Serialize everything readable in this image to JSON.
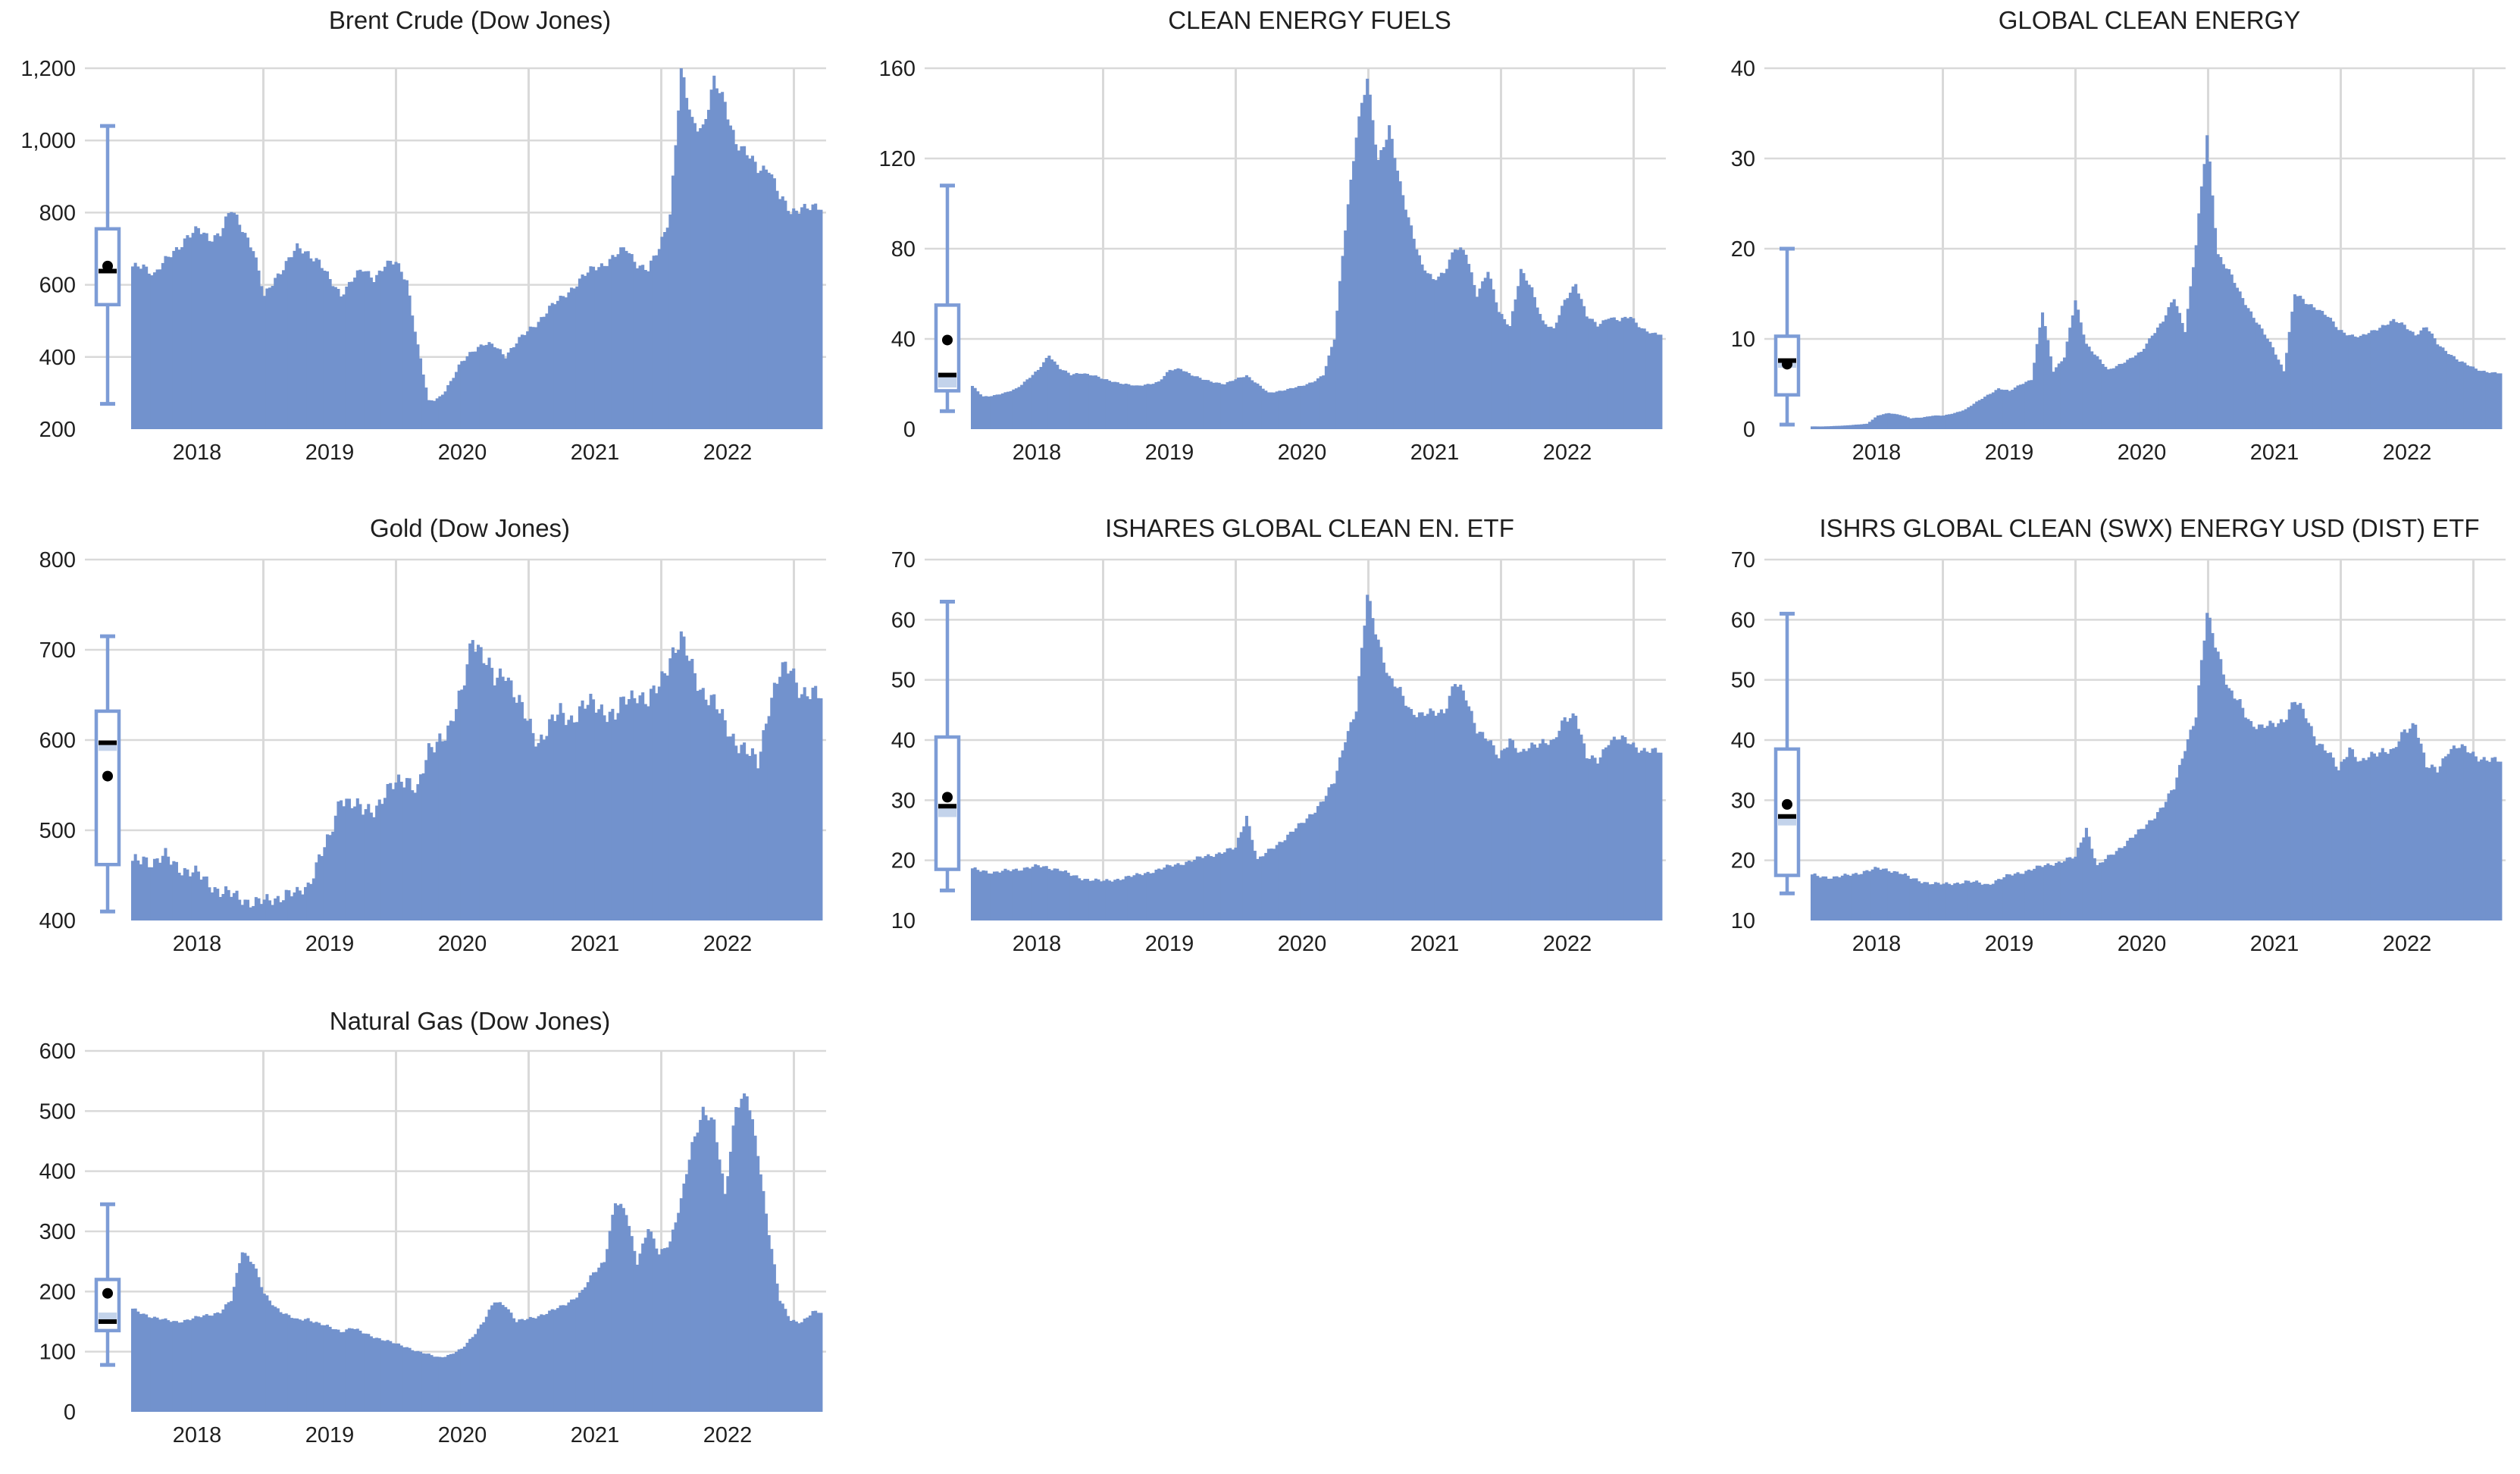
{
  "page": {
    "background": "#ffffff"
  },
  "style": {
    "bar_color": "#7292CD",
    "box_stroke_color": "#7D9CD6",
    "box_fill_color": "#FFFFFF",
    "box_band_color": "#C3D3EB",
    "median_color": "#000000",
    "mean_dot_color": "#000000",
    "gridline_color": "#D9D9D9",
    "text_color": "#1f1f1f"
  },
  "chart_data": [
    {
      "type": "bar",
      "title": "Brent Crude (Dow Jones)",
      "xlabel": "",
      "ylabel": "",
      "x_axis": {
        "tick_labels": [
          "2018",
          "2019",
          "2020",
          "2021",
          "2022"
        ]
      },
      "y_axis": {
        "min": 200,
        "max": 1200,
        "step": 200,
        "tick_labels": [
          "200",
          "400",
          "600",
          "800",
          "1,000",
          "1,200"
        ]
      },
      "series_interval": "monthly",
      "series_start": "2018-01",
      "series_end": "2023-03",
      "values": [
        645,
        655,
        630,
        665,
        700,
        735,
        750,
        730,
        745,
        805,
        760,
        700,
        565,
        620,
        660,
        700,
        690,
        665,
        610,
        575,
        615,
        640,
        620,
        655,
        660,
        615,
        430,
        275,
        290,
        330,
        385,
        420,
        435,
        430,
        405,
        440,
        470,
        500,
        535,
        560,
        590,
        620,
        645,
        660,
        680,
        700,
        660,
        640,
        700,
        800,
        1190,
        1050,
        1040,
        1160,
        1100,
        1000,
        960,
        920,
        930,
        840,
        800,
        820,
        810
      ],
      "boxplot": {
        "whisker_low": 270,
        "q1": 545,
        "median": 638,
        "q3": 755,
        "whisker_high": 1040,
        "mean": 652,
        "band": null
      }
    },
    {
      "type": "bar",
      "title": "CLEAN ENERGY FUELS",
      "xlabel": "",
      "ylabel": "",
      "x_axis": {
        "tick_labels": [
          "2018",
          "2019",
          "2020",
          "2021",
          "2022"
        ]
      },
      "y_axis": {
        "min": 0,
        "max": 160,
        "step": 40,
        "tick_labels": [
          "0",
          "40",
          "80",
          "120",
          "160"
        ]
      },
      "series_interval": "monthly",
      "series_start": "2018-01",
      "series_end": "2023-03",
      "values": [
        19,
        14.5,
        15,
        16,
        18,
        22,
        26,
        33,
        27,
        24,
        25,
        24,
        22,
        21,
        20,
        19,
        20,
        21,
        26,
        27,
        24,
        22,
        21,
        20,
        22,
        24,
        20,
        16,
        17,
        18,
        19,
        21,
        24,
        40,
        90,
        130,
        155,
        120,
        133,
        108,
        90,
        72,
        66,
        70,
        80,
        78,
        60,
        70,
        52,
        46,
        70,
        62,
        48,
        44,
        57,
        65,
        50,
        46,
        50,
        48,
        50,
        45,
        42
      ],
      "boxplot": {
        "whisker_low": 8,
        "q1": 17,
        "median": 24,
        "q3": 55,
        "whisker_high": 108,
        "mean": 39.5,
        "band": [
          18.5,
          23.5
        ]
      }
    },
    {
      "type": "bar",
      "title": "GLOBAL CLEAN ENERGY",
      "xlabel": "",
      "ylabel": "",
      "x_axis": {
        "tick_labels": [
          "2018",
          "2019",
          "2020",
          "2021",
          "2022"
        ]
      },
      "y_axis": {
        "min": 0,
        "max": 40,
        "step": 10,
        "tick_labels": [
          "0",
          "10",
          "20",
          "30",
          "40"
        ]
      },
      "series_interval": "monthly",
      "series_start": "2018-01",
      "series_end": "2023-03",
      "values": [
        0.3,
        0.3,
        0.35,
        0.4,
        0.5,
        0.6,
        1.5,
        1.8,
        1.6,
        1.2,
        1.3,
        1.5,
        1.5,
        1.8,
        2.2,
        3.0,
        3.8,
        4.5,
        4.2,
        5.0,
        5.5,
        13.0,
        6.5,
        8.0,
        14.2,
        9.5,
        8.0,
        6.5,
        7.2,
        7.8,
        8.5,
        10.5,
        12.0,
        14.5,
        11.0,
        20.5,
        32.5,
        19.5,
        17.5,
        15.0,
        13.0,
        11.0,
        9.0,
        6.5,
        15.0,
        14.0,
        13.5,
        12.5,
        11.0,
        10.5,
        10.2,
        10.8,
        11.5,
        12.0,
        11.5,
        10.5,
        11.3,
        9.5,
        8.5,
        7.5,
        7.0,
        6.5,
        6.2
      ],
      "boxplot": {
        "whisker_low": 0.5,
        "q1": 3.8,
        "median": 7.6,
        "q3": 10.3,
        "whisker_high": 20,
        "mean": 7.2,
        "band": [
          6.8,
          7.4
        ]
      }
    },
    {
      "type": "bar",
      "title": "Gold (Dow Jones)",
      "xlabel": "",
      "ylabel": "",
      "x_axis": {
        "tick_labels": [
          "2018",
          "2019",
          "2020",
          "2021",
          "2022"
        ]
      },
      "y_axis": {
        "min": 400,
        "max": 800,
        "step": 100,
        "tick_labels": [
          "400",
          "500",
          "600",
          "700",
          "800"
        ]
      },
      "series_interval": "monthly",
      "series_start": "2018-01",
      "series_end": "2023-03",
      "values": [
        462,
        470,
        465,
        470,
        462,
        455,
        450,
        442,
        432,
        428,
        425,
        420,
        420,
        425,
        430,
        428,
        440,
        470,
        490,
        540,
        530,
        520,
        525,
        540,
        550,
        560,
        545,
        585,
        605,
        615,
        650,
        720,
        690,
        665,
        680,
        645,
        620,
        600,
        615,
        630,
        625,
        635,
        640,
        635,
        625,
        645,
        655,
        640,
        660,
        695,
        710,
        680,
        655,
        640,
        618,
        600,
        585,
        575,
        640,
        672,
        680,
        655,
        648
      ],
      "boxplot": {
        "whisker_low": 410,
        "q1": 462,
        "median": 597,
        "q3": 632,
        "whisker_high": 715,
        "mean": 560,
        "band": [
          588,
          595.5
        ]
      }
    },
    {
      "type": "bar",
      "title": "ISHARES GLOBAL CLEAN EN. ETF",
      "xlabel": "",
      "ylabel": "",
      "x_axis": {
        "tick_labels": [
          "2018",
          "2019",
          "2020",
          "2021",
          "2022"
        ]
      },
      "y_axis": {
        "min": 10,
        "max": 70,
        "step": 10,
        "tick_labels": [
          "10",
          "20",
          "30",
          "40",
          "50",
          "60",
          "70"
        ]
      },
      "series_interval": "monthly",
      "series_start": "2018-01",
      "series_end": "2023-03",
      "values": [
        18.5,
        18.3,
        18.0,
        18.2,
        18.5,
        18.8,
        19.0,
        18.8,
        18.5,
        17.5,
        17.0,
        16.8,
        16.5,
        16.8,
        17.2,
        17.5,
        18.0,
        18.5,
        19.0,
        19.5,
        20.0,
        20.5,
        21.0,
        21.5,
        22.0,
        27.5,
        20.0,
        21.5,
        23.0,
        24.5,
        26.0,
        28.0,
        30.0,
        33.0,
        40.5,
        45.0,
        64.0,
        57.0,
        50.0,
        48.0,
        45.0,
        44.0,
        44.5,
        45.0,
        49.5,
        47.0,
        42.0,
        40.0,
        37.0,
        40.5,
        37.5,
        39.0,
        40.0,
        39.5,
        43.5,
        44.5,
        37.0,
        36.5,
        40.0,
        40.2,
        39.5,
        38.5,
        38.0
      ],
      "boxplot": {
        "whisker_low": 15,
        "q1": 18.5,
        "median": 29,
        "q3": 40.5,
        "whisker_high": 63,
        "mean": 30.5,
        "band": [
          27.2,
          28.8
        ]
      }
    },
    {
      "type": "bar",
      "title": "ISHRS GLOBAL CLEAN (SWX) ENERGY USD (DIST) ETF",
      "xlabel": "",
      "ylabel": "",
      "x_axis": {
        "tick_labels": [
          "2018",
          "2019",
          "2020",
          "2021",
          "2022"
        ]
      },
      "y_axis": {
        "min": 10,
        "max": 70,
        "step": 10,
        "tick_labels": [
          "10",
          "20",
          "30",
          "40",
          "50",
          "60",
          "70"
        ]
      },
      "series_interval": "monthly",
      "series_start": "2018-01",
      "series_end": "2023-03",
      "values": [
        17.5,
        17.3,
        17.2,
        17.4,
        17.8,
        18.3,
        18.6,
        18.4,
        18.0,
        17.0,
        16.5,
        16.2,
        16.0,
        16.2,
        16.5,
        16.3,
        16.0,
        16.8,
        17.5,
        18.0,
        18.5,
        19.0,
        19.5,
        20.0,
        20.5,
        25.5,
        19.0,
        20.5,
        22.0,
        23.5,
        25.0,
        27.0,
        29.0,
        32.0,
        39.0,
        44.0,
        61.0,
        55.0,
        48.0,
        46.0,
        43.0,
        42.0,
        42.5,
        43.5,
        46.5,
        44.0,
        40.0,
        38.0,
        35.0,
        39.0,
        36.0,
        37.5,
        38.5,
        38.0,
        41.5,
        43.0,
        35.5,
        35.0,
        38.5,
        38.8,
        38.0,
        37.0,
        36.5
      ],
      "boxplot": {
        "whisker_low": 14.5,
        "q1": 17.5,
        "median": 27.3,
        "q3": 38.5,
        "whisker_high": 61,
        "mean": 29.3,
        "band": [
          25.8,
          27.0
        ]
      }
    },
    {
      "type": "bar",
      "title": "Natural Gas (Dow Jones)",
      "xlabel": "",
      "ylabel": "",
      "x_axis": {
        "tick_labels": [
          "2018",
          "2019",
          "2020",
          "2021",
          "2022"
        ]
      },
      "y_axis": {
        "min": 0,
        "max": 600,
        "step": 100,
        "tick_labels": [
          "0",
          "100",
          "200",
          "300",
          "400",
          "500",
          "600"
        ]
      },
      "series_interval": "monthly",
      "series_start": "2018-01",
      "series_end": "2023-03",
      "values": [
        170,
        163,
        157,
        152,
        150,
        153,
        157,
        162,
        166,
        185,
        270,
        248,
        195,
        175,
        162,
        152,
        155,
        147,
        140,
        134,
        140,
        131,
        125,
        119,
        113,
        108,
        100,
        95,
        91,
        95,
        104,
        126,
        150,
        183,
        178,
        150,
        154,
        160,
        166,
        174,
        186,
        200,
        230,
        252,
        348,
        330,
        250,
        305,
        262,
        285,
        350,
        442,
        505,
        478,
        360,
        512,
        525,
        430,
        300,
        185,
        152,
        150,
        165
      ],
      "boxplot": {
        "whisker_low": 78,
        "q1": 135,
        "median": 150,
        "q3": 220,
        "whisker_high": 345,
        "mean": 197,
        "band": [
          152,
          165
        ]
      }
    }
  ]
}
